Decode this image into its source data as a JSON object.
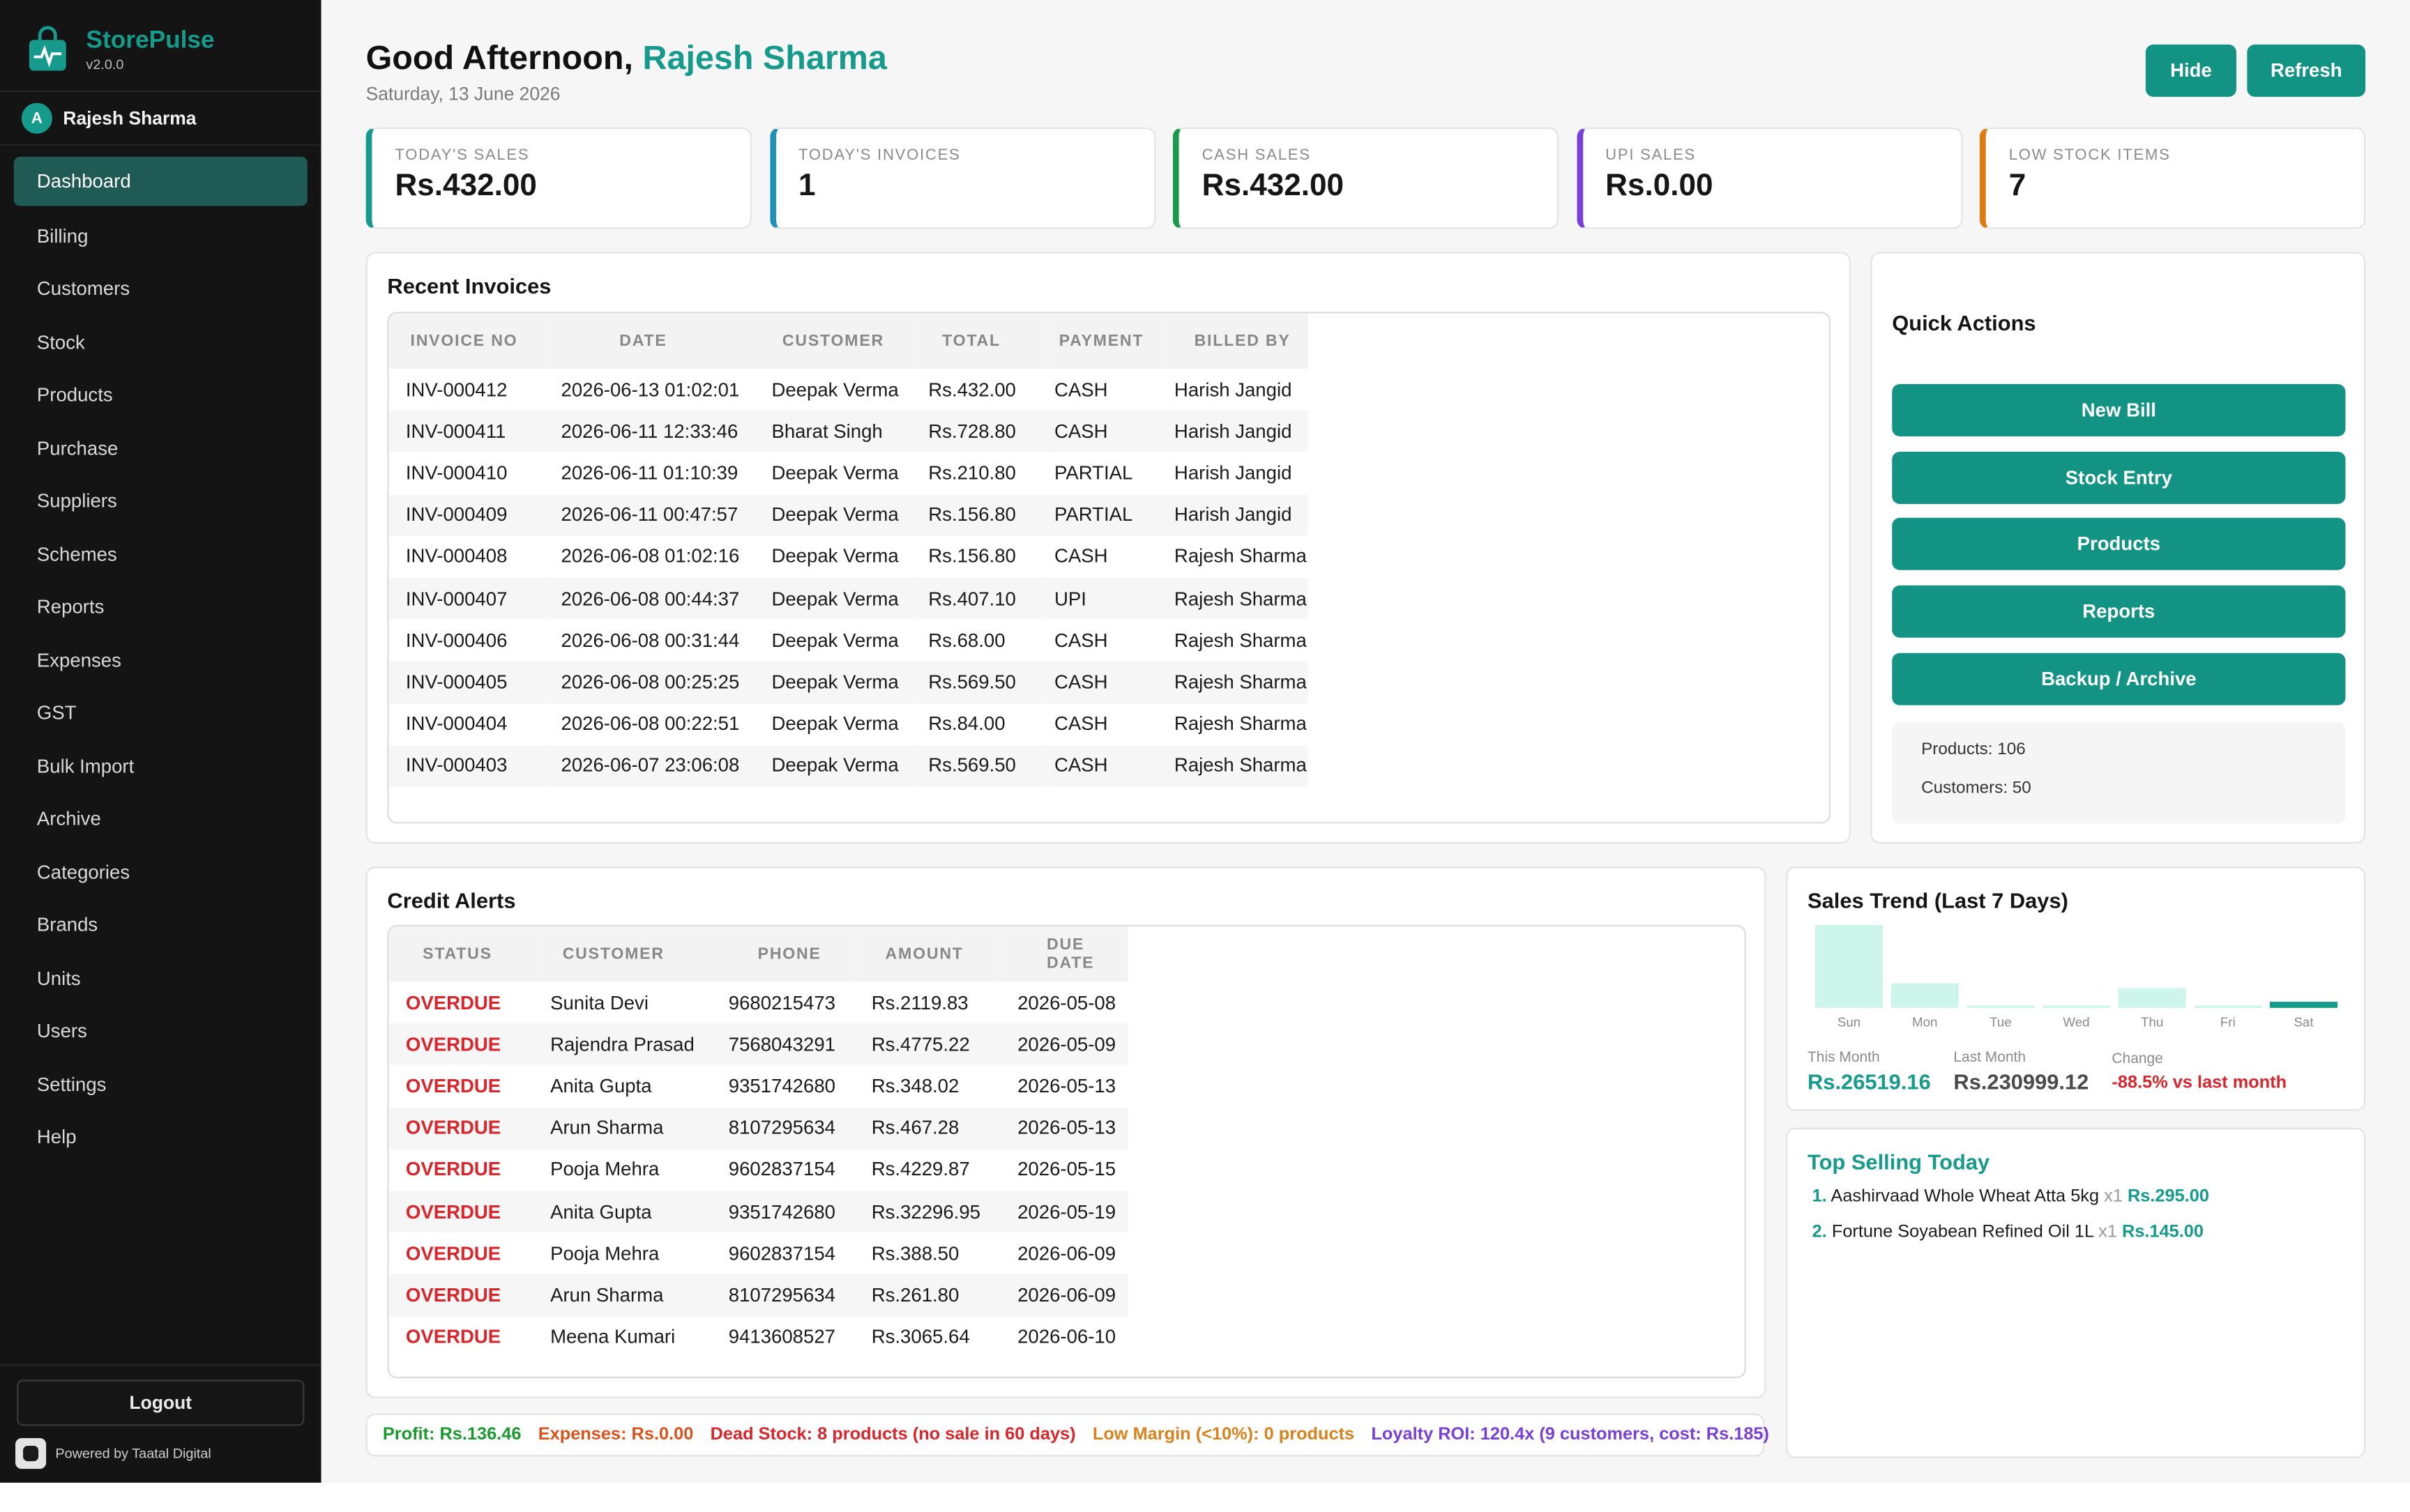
{
  "app": {
    "name": "StorePulse",
    "version": "v2.0.0"
  },
  "user": {
    "initial": "A",
    "name": "Rajesh Sharma"
  },
  "nav": [
    {
      "label": "Dashboard",
      "active": true
    },
    {
      "label": "Billing"
    },
    {
      "label": "Customers"
    },
    {
      "label": "Stock"
    },
    {
      "label": "Products"
    },
    {
      "label": "Purchase"
    },
    {
      "label": "Suppliers"
    },
    {
      "label": "Schemes"
    },
    {
      "label": "Reports"
    },
    {
      "label": "Expenses"
    },
    {
      "label": "GST"
    },
    {
      "label": "Bulk Import"
    },
    {
      "label": "Archive"
    },
    {
      "label": "Categories"
    },
    {
      "label": "Brands"
    },
    {
      "label": "Units"
    },
    {
      "label": "Users"
    },
    {
      "label": "Settings"
    },
    {
      "label": "Help"
    }
  ],
  "logout_label": "Logout",
  "powered_by": "Powered by Taatal Digital",
  "header": {
    "greeting": "Good Afternoon,",
    "name": "Rajesh Sharma",
    "date": "Saturday, 13 June 2026",
    "hide_label": "Hide",
    "refresh_label": "Refresh"
  },
  "stats": [
    {
      "label": "Today's Sales",
      "value": "Rs.432.00",
      "color": "#169a8c"
    },
    {
      "label": "Today's Invoices",
      "value": "1",
      "color": "#1f8fb8"
    },
    {
      "label": "Cash Sales",
      "value": "Rs.432.00",
      "color": "#1a9a4c"
    },
    {
      "label": "UPI Sales",
      "value": "Rs.0.00",
      "color": "#7a3fd6"
    },
    {
      "label": "Low Stock Items",
      "value": "7",
      "color": "#e07b12"
    }
  ],
  "recent_invoices": {
    "title": "Recent Invoices",
    "columns": [
      "Invoice No",
      "Date",
      "Customer",
      "Total",
      "Payment",
      "Billed By"
    ],
    "rows": [
      [
        "INV-000412",
        "2026-06-13 01:02:01",
        "Deepak Verma",
        "Rs.432.00",
        "CASH",
        "Harish Jangid"
      ],
      [
        "INV-000411",
        "2026-06-11 12:33:46",
        "Bharat Singh",
        "Rs.728.80",
        "CASH",
        "Harish Jangid"
      ],
      [
        "INV-000410",
        "2026-06-11 01:10:39",
        "Deepak Verma",
        "Rs.210.80",
        "PARTIAL",
        "Harish Jangid"
      ],
      [
        "INV-000409",
        "2026-06-11 00:47:57",
        "Deepak Verma",
        "Rs.156.80",
        "PARTIAL",
        "Harish Jangid"
      ],
      [
        "INV-000408",
        "2026-06-08 01:02:16",
        "Deepak Verma",
        "Rs.156.80",
        "CASH",
        "Rajesh Sharma"
      ],
      [
        "INV-000407",
        "2026-06-08 00:44:37",
        "Deepak Verma",
        "Rs.407.10",
        "UPI",
        "Rajesh Sharma"
      ],
      [
        "INV-000406",
        "2026-06-08 00:31:44",
        "Deepak Verma",
        "Rs.68.00",
        "CASH",
        "Rajesh Sharma"
      ],
      [
        "INV-000405",
        "2026-06-08 00:25:25",
        "Deepak Verma",
        "Rs.569.50",
        "CASH",
        "Rajesh Sharma"
      ],
      [
        "INV-000404",
        "2026-06-08 00:22:51",
        "Deepak Verma",
        "Rs.84.00",
        "CASH",
        "Rajesh Sharma"
      ],
      [
        "INV-000403",
        "2026-06-07 23:06:08",
        "Deepak Verma",
        "Rs.569.50",
        "CASH",
        "Rajesh Sharma"
      ]
    ]
  },
  "quick_actions": {
    "title": "Quick Actions",
    "buttons": [
      "New Bill",
      "Stock Entry",
      "Products",
      "Reports",
      "Backup / Archive"
    ],
    "products_count": "Products: 106",
    "customers_count": "Customers: 50"
  },
  "credit_alerts": {
    "title": "Credit Alerts",
    "columns": [
      "Status",
      "Customer",
      "Phone",
      "Amount",
      "Due Date"
    ],
    "rows": [
      [
        "OVERDUE",
        "Sunita Devi",
        "9680215473",
        "Rs.2119.83",
        "2026-05-08"
      ],
      [
        "OVERDUE",
        "Rajendra Prasad",
        "7568043291",
        "Rs.4775.22",
        "2026-05-09"
      ],
      [
        "OVERDUE",
        "Anita Gupta",
        "9351742680",
        "Rs.348.02",
        "2026-05-13"
      ],
      [
        "OVERDUE",
        "Arun Sharma",
        "8107295634",
        "Rs.467.28",
        "2026-05-13"
      ],
      [
        "OVERDUE",
        "Pooja Mehra",
        "9602837154",
        "Rs.4229.87",
        "2026-05-15"
      ],
      [
        "OVERDUE",
        "Anita Gupta",
        "9351742680",
        "Rs.32296.95",
        "2026-05-19"
      ],
      [
        "OVERDUE",
        "Pooja Mehra",
        "9602837154",
        "Rs.388.50",
        "2026-06-09"
      ],
      [
        "OVERDUE",
        "Arun Sharma",
        "8107295634",
        "Rs.261.80",
        "2026-06-09"
      ],
      [
        "OVERDUE",
        "Meena Kumari",
        "9413608527",
        "Rs.3065.64",
        "2026-06-10"
      ]
    ]
  },
  "sales_trend": {
    "title": "Sales Trend (Last 7 Days)",
    "this_month_label": "This Month",
    "this_month_value": "Rs.26519.16",
    "last_month_label": "Last Month",
    "last_month_value": "Rs.230999.12",
    "change_label": "Change",
    "change_value": "-88.5% vs last month"
  },
  "chart_data": {
    "type": "bar",
    "categories": [
      "Sun",
      "Mon",
      "Tue",
      "Wed",
      "Thu",
      "Fri",
      "Sat"
    ],
    "values": [
      2350,
      700,
      60,
      60,
      560,
      30,
      432
    ],
    "highlight_index": 6,
    "bar_color": "#cdf5ec",
    "highlight_color": "#169a8c"
  },
  "top_selling": {
    "title": "Top Selling Today",
    "items": [
      {
        "idx": "1.",
        "name": "Aashirvaad Whole Wheat Atta 5kg",
        "qty": "x1",
        "amount": "Rs.295.00"
      },
      {
        "idx": "2.",
        "name": "Fortune Soyabean Refined Oil 1L",
        "qty": "x1",
        "amount": "Rs.145.00"
      }
    ]
  },
  "footer": [
    {
      "text": "Profit: Rs.136.46",
      "color": "#1a9a2c"
    },
    {
      "text": "Expenses: Rs.0.00",
      "color": "#d9541c"
    },
    {
      "text": "Dead Stock: 8 products (no sale in 60 days)",
      "color": "#d8262c"
    },
    {
      "text": "Low Margin (<10%): 0 products",
      "color": "#d9821c"
    },
    {
      "text": "Loyalty ROI: 120.4x (9 customers, cost: Rs.185)",
      "color": "#7a3fd6"
    }
  ]
}
